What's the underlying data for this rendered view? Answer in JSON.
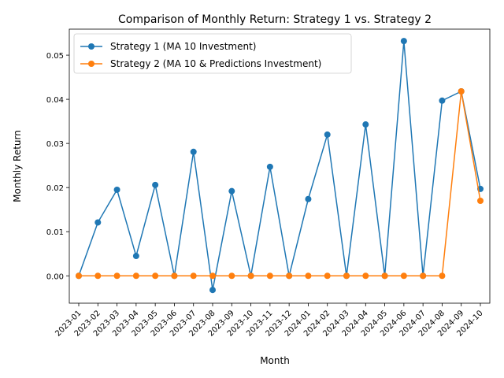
{
  "chart_data": {
    "type": "line",
    "title": "Comparison of Monthly Return: Strategy 1 vs. Strategy 2",
    "xlabel": "Month",
    "ylabel": "Monthly Return",
    "ylim": [
      -0.0062,
      0.0559
    ],
    "yticks": [
      0.0,
      0.01,
      0.02,
      0.03,
      0.04,
      0.05
    ],
    "ytick_labels": [
      "0.00",
      "0.01",
      "0.02",
      "0.03",
      "0.04",
      "0.05"
    ],
    "grid": false,
    "legend_position": "top-left",
    "categories": [
      "2023-01",
      "2023-02",
      "2023-03",
      "2023-04",
      "2023-05",
      "2023-06",
      "2023-07",
      "2023-08",
      "2023-09",
      "2023-10",
      "2023-11",
      "2023-12",
      "2024-01",
      "2024-02",
      "2024-03",
      "2024-04",
      "2024-05",
      "2024-06",
      "2024-07",
      "2024-08",
      "2024-09",
      "2024-10"
    ],
    "series": [
      {
        "name": "Strategy 1 (MA 10 Investment)",
        "color": "#1f77b4",
        "marker": "circle",
        "values": [
          0.0,
          0.0121,
          0.0195,
          0.0045,
          0.0206,
          0.0,
          0.0281,
          -0.0032,
          0.0192,
          0.0,
          0.0247,
          0.0,
          0.0174,
          0.032,
          0.0,
          0.0343,
          0.0,
          0.0532,
          0.0,
          0.0397,
          0.0418,
          0.0197
        ]
      },
      {
        "name": "Strategy 2 (MA 10 & Predictions Investment)",
        "color": "#ff7f0e",
        "marker": "circle",
        "values": [
          0.0,
          0.0,
          0.0,
          0.0,
          0.0,
          0.0,
          0.0,
          0.0,
          0.0,
          0.0,
          0.0,
          0.0,
          0.0,
          0.0,
          0.0,
          0.0,
          0.0,
          0.0,
          0.0,
          0.0,
          0.0418,
          0.017
        ]
      }
    ]
  }
}
